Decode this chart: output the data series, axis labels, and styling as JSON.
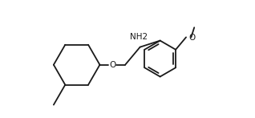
{
  "background": "#ffffff",
  "line_color": "#1a1a1a",
  "line_width": 1.3,
  "label_fontsize": 7.5,
  "NH2_label": "NH2",
  "O_label": "O",
  "OCH3_label": "O",
  "figsize": [
    3.18,
    1.47
  ],
  "dpi": 100
}
